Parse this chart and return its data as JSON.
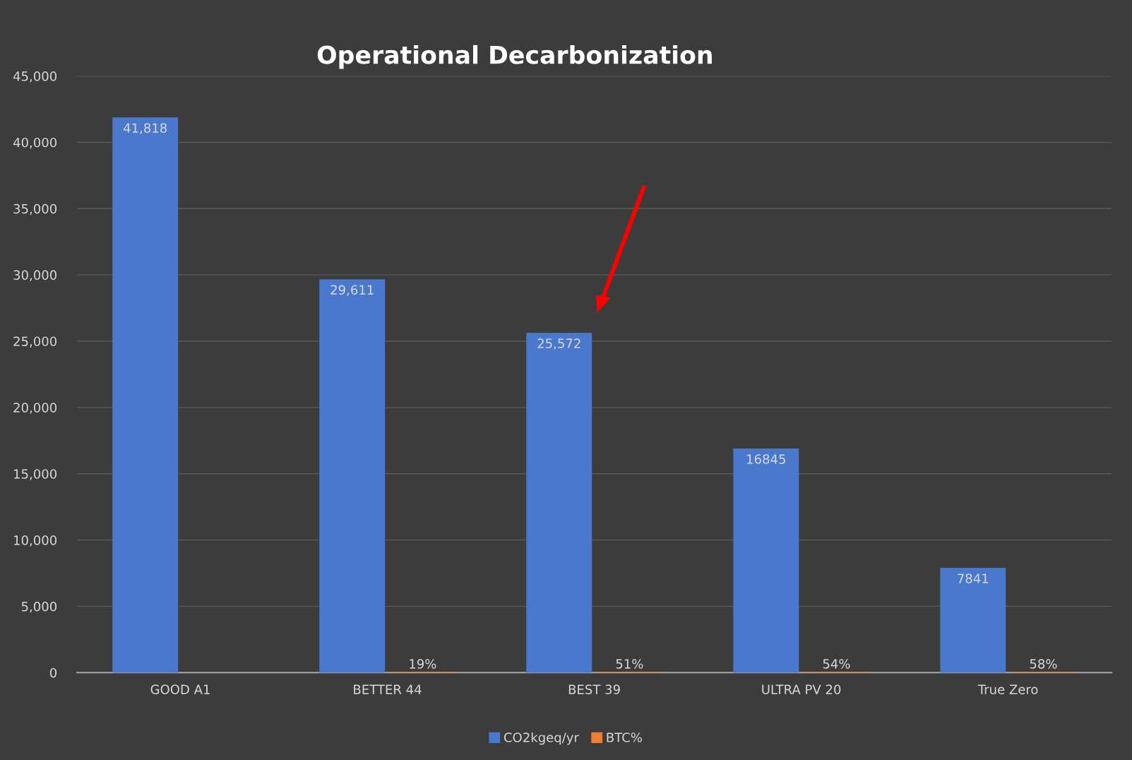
{
  "chart_data": {
    "type": "bar",
    "title": "Operational Decarbonization",
    "categories": [
      "GOOD A1",
      "BETTER 44",
      "BEST 39",
      "ULTRA PV 20",
      "True Zero"
    ],
    "series": [
      {
        "name": "CO2kgeq/yr",
        "color": "#4a78cc",
        "values": [
          41818,
          29611,
          25572,
          16845,
          7841
        ],
        "value_labels": [
          "41,818",
          "29,611",
          "25,572",
          "16845",
          "7841"
        ]
      },
      {
        "name": "BTC%",
        "color": "#ed7d31",
        "values": [
          null,
          0.19,
          0.51,
          0.54,
          0.58
        ],
        "value_labels": [
          null,
          "19%",
          "51%",
          "54%",
          "58%"
        ]
      }
    ],
    "ylim": [
      0,
      45000
    ],
    "yticks": [
      {
        "value": 0,
        "label": "0"
      },
      {
        "value": 5000,
        "label": "5,000"
      },
      {
        "value": 10000,
        "label": "10,000"
      },
      {
        "value": 15000,
        "label": "15,000"
      },
      {
        "value": 20000,
        "label": "20,000"
      },
      {
        "value": 25000,
        "label": "25,000"
      },
      {
        "value": 30000,
        "label": "30,000"
      },
      {
        "value": 35000,
        "label": "35,000"
      },
      {
        "value": 40000,
        "label": "40,000"
      },
      {
        "value": 45000,
        "label": "45,000"
      }
    ],
    "grid": "y",
    "legend": "bottom"
  }
}
